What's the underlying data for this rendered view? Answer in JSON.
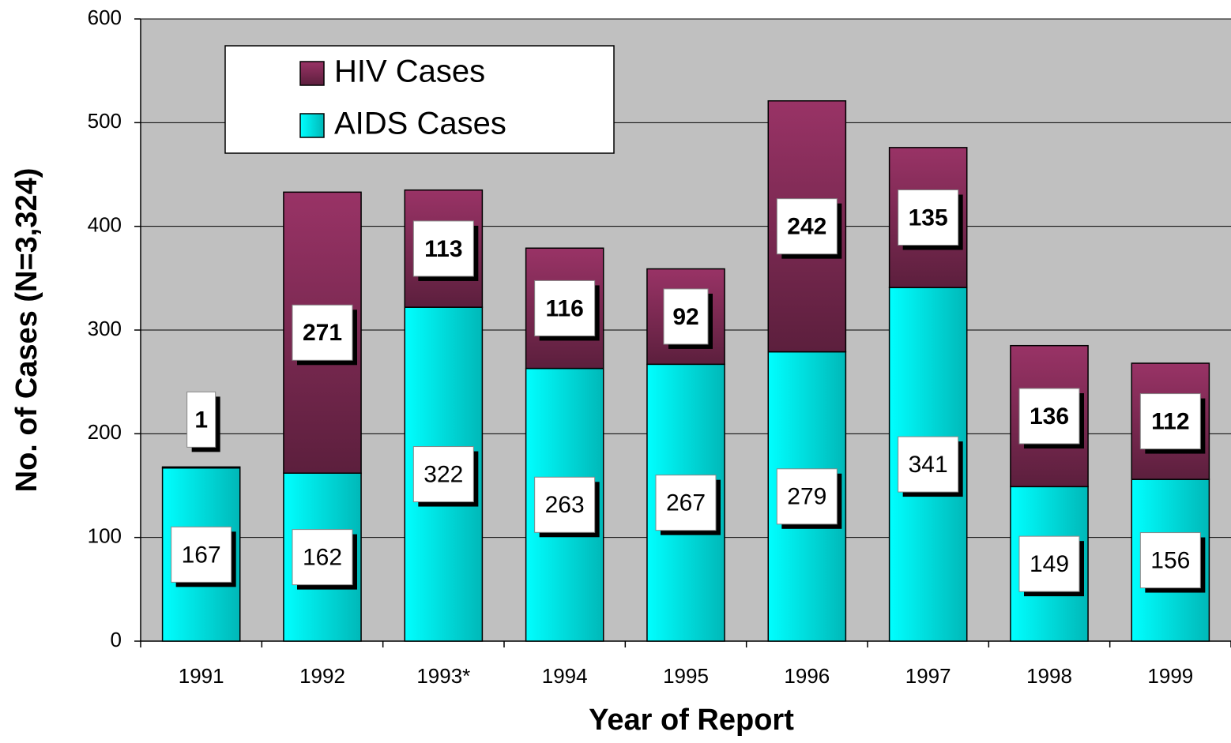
{
  "chart_data": {
    "type": "stacked_bar",
    "xlabel": "Year of Report",
    "ylabel": "No. of Cases (N=3,324)",
    "categories": [
      "1991",
      "1992",
      "1993*",
      "1994",
      "1995",
      "1996",
      "1997",
      "1998",
      "1999"
    ],
    "series": [
      {
        "name": "AIDS Cases",
        "color": "#00ffff",
        "values": [
          167,
          162,
          322,
          263,
          267,
          279,
          341,
          149,
          156
        ]
      },
      {
        "name": "HIV Cases",
        "color": "#993366",
        "values": [
          1,
          271,
          113,
          116,
          92,
          242,
          135,
          136,
          112
        ]
      }
    ],
    "ylim": [
      0,
      600
    ],
    "yticks": [
      0,
      100,
      200,
      300,
      400,
      500,
      600
    ],
    "grid": true,
    "legend": "upper left",
    "background": "#c0c0c0"
  }
}
